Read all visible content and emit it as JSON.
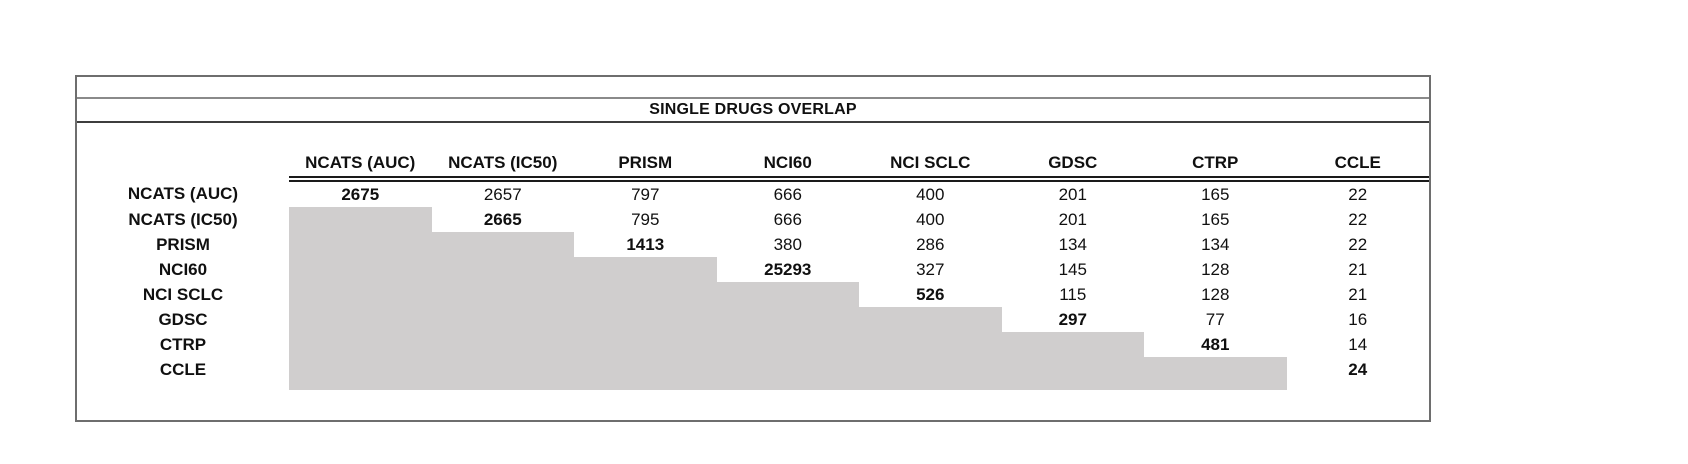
{
  "title": "SINGLE DRUGS OVERLAP",
  "table": {
    "corner_label": "",
    "columns": [
      "NCATS (AUC)",
      "NCATS (IC50)",
      "PRISM",
      "NCI60",
      "NCI SCLC",
      "GDSC",
      "CTRP",
      "CCLE"
    ],
    "rows": [
      {
        "label": "NCATS (AUC)",
        "values": [
          "2675",
          "2657",
          "797",
          "666",
          "400",
          "201",
          "165",
          "22"
        ]
      },
      {
        "label": "NCATS (IC50)",
        "values": [
          "",
          "2665",
          "795",
          "666",
          "400",
          "201",
          "165",
          "22"
        ]
      },
      {
        "label": "PRISM",
        "values": [
          "",
          "",
          "1413",
          "380",
          "286",
          "134",
          "134",
          "22"
        ]
      },
      {
        "label": "NCI60",
        "values": [
          "",
          "",
          "",
          "25293",
          "327",
          "145",
          "128",
          "21"
        ]
      },
      {
        "label": "NCI SCLC",
        "values": [
          "",
          "",
          "",
          "",
          "526",
          "115",
          "128",
          "21"
        ]
      },
      {
        "label": "GDSC",
        "values": [
          "",
          "",
          "",
          "",
          "",
          "297",
          "77",
          "16"
        ]
      },
      {
        "label": "CTRP",
        "values": [
          "",
          "",
          "",
          "",
          "",
          "",
          "481",
          "14"
        ]
      },
      {
        "label": "CCLE",
        "values": [
          "",
          "",
          "",
          "",
          "",
          "",
          "",
          "24"
        ]
      }
    ]
  },
  "colors": {
    "shade_fill": "#d0cece",
    "outer_border": "#6e6e6e",
    "thin_rule": "#8a8a8a",
    "title_rule": "#3d3d3d",
    "double_rule": "#1a1a1a",
    "text": "#101010"
  },
  "chart_data": {
    "type": "table",
    "title": "SINGLE DRUGS OVERLAP",
    "labels": [
      "NCATS (AUC)",
      "NCATS (IC50)",
      "PRISM",
      "NCI60",
      "NCI SCLC",
      "GDSC",
      "CTRP",
      "CCLE"
    ],
    "matrix_upper_triangle": [
      [
        2675,
        2657,
        797,
        666,
        400,
        201,
        165,
        22
      ],
      [
        null,
        2665,
        795,
        666,
        400,
        201,
        165,
        22
      ],
      [
        null,
        null,
        1413,
        380,
        286,
        134,
        134,
        22
      ],
      [
        null,
        null,
        null,
        25293,
        327,
        145,
        128,
        21
      ],
      [
        null,
        null,
        null,
        null,
        526,
        115,
        128,
        21
      ],
      [
        null,
        null,
        null,
        null,
        null,
        297,
        77,
        16
      ],
      [
        null,
        null,
        null,
        null,
        null,
        null,
        481,
        14
      ],
      [
        null,
        null,
        null,
        null,
        null,
        null,
        null,
        24
      ]
    ],
    "diagonal_values": [
      2675,
      2665,
      1413,
      25293,
      526,
      297,
      481,
      24
    ],
    "style_notes": "Diagonal values bold; lower triangle below the diagonal is a solid gray staircase with no values; double rule under column headers spans data columns only."
  }
}
